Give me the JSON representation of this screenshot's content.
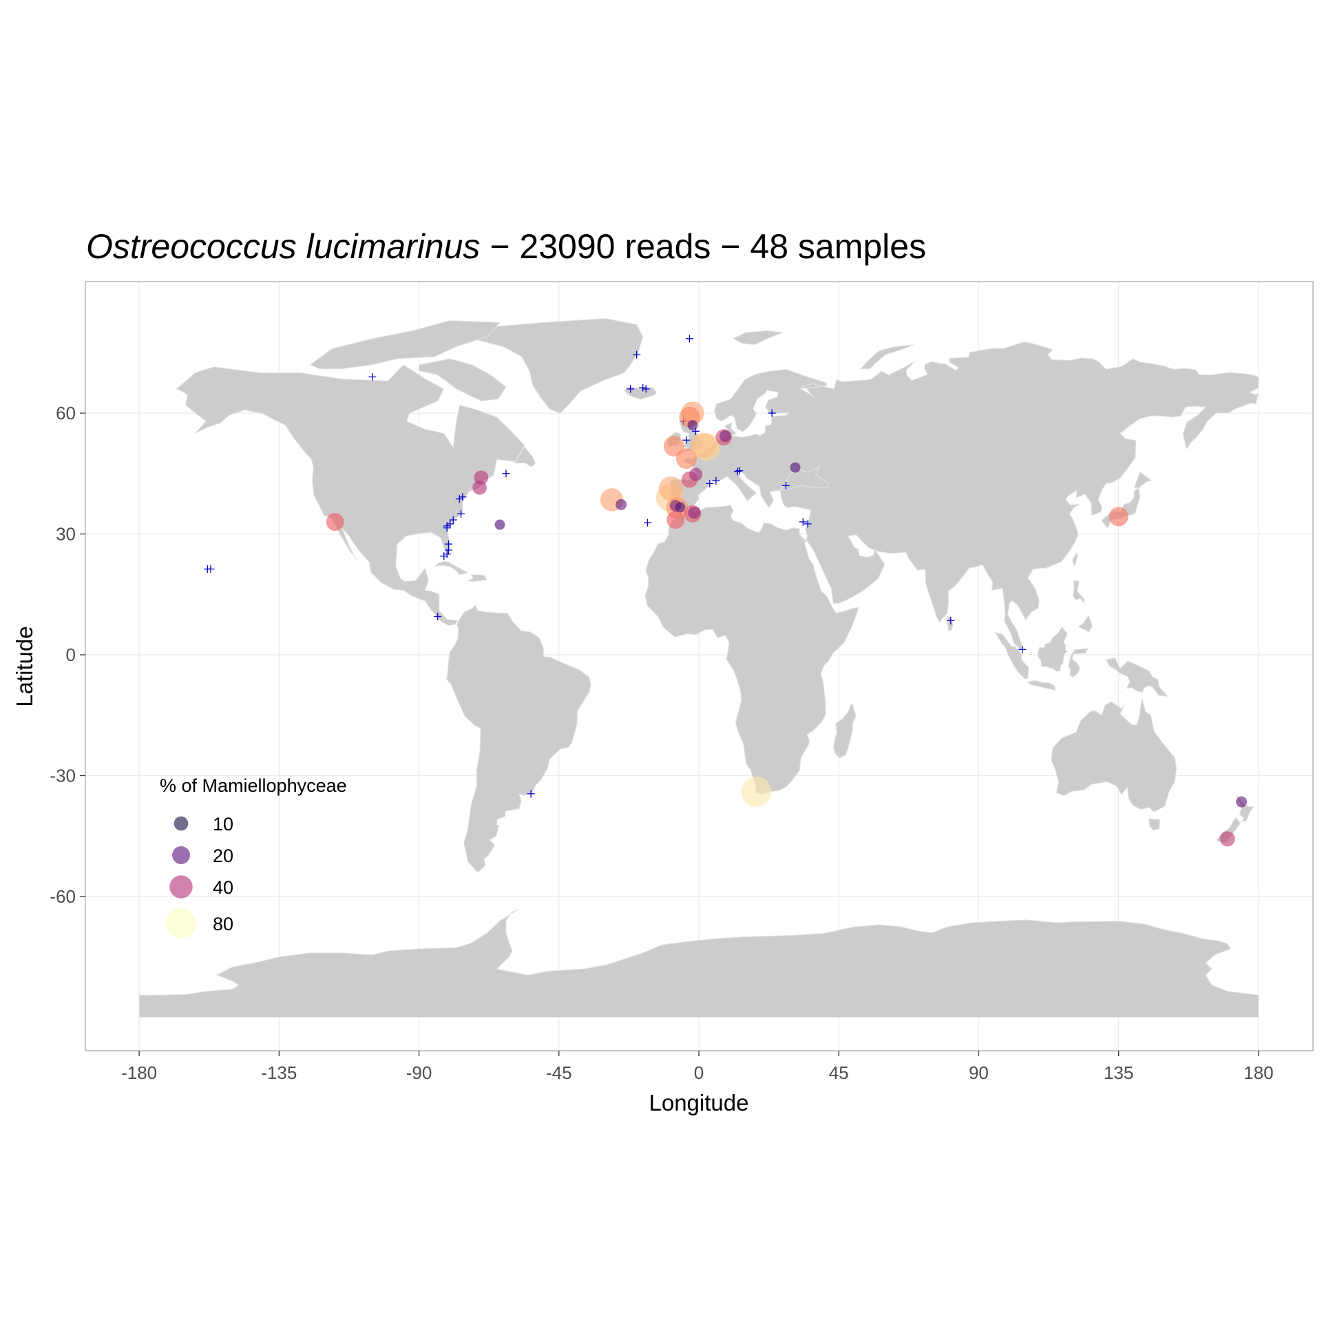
{
  "chart_data": {
    "type": "scatter",
    "title_italic": "Ostreococcus lucimarinus",
    "title_rest": " − 23090 reads − 48 samples",
    "xlabel": "Longitude",
    "ylabel": "Latitude",
    "xlim": [
      -194,
      194
    ],
    "ylim": [
      -98,
      92
    ],
    "x_ticks": [
      -180,
      -135,
      -90,
      -45,
      0,
      45,
      90,
      135,
      180
    ],
    "y_ticks": [
      -60,
      -30,
      0,
      30,
      60
    ],
    "grid": true,
    "legend": {
      "title": "% of Mamiellophyceae",
      "placement": "bottom-left inside",
      "entries": [
        {
          "label": "10",
          "value": 10,
          "color": "#1d1147"
        },
        {
          "label": "20",
          "value": 20,
          "color": "#5f187f"
        },
        {
          "label": "40",
          "value": 40,
          "color": "#b5367a"
        },
        {
          "label": "80",
          "value": 80,
          "color": "#fcfdbf"
        }
      ]
    },
    "colors": {
      "land": "#cccccc",
      "border": "#e6e6e6",
      "absent_marker": "#0000cc",
      "panel_border": "#b3b3b3"
    },
    "present_samples": [
      {
        "lon": -117,
        "lat": 33,
        "pct": 20
      },
      {
        "lon": -70,
        "lat": 44,
        "pct": 10
      },
      {
        "lon": -70.5,
        "lat": 41.5,
        "pct": 10
      },
      {
        "lon": -64,
        "lat": 32.3,
        "pct": 3
      },
      {
        "lon": -28,
        "lat": 38.5,
        "pct": 40
      },
      {
        "lon": -25,
        "lat": 37.3,
        "pct": 4
      },
      {
        "lon": -2,
        "lat": 60,
        "pct": 40
      },
      {
        "lon": -3,
        "lat": 59,
        "pct": 30
      },
      {
        "lon": -2,
        "lat": 57,
        "pct": 3
      },
      {
        "lon": -8,
        "lat": 51.8,
        "pct": 30
      },
      {
        "lon": -4,
        "lat": 48.7,
        "pct": 30
      },
      {
        "lon": 2.5,
        "lat": 51.5,
        "pct": 65
      },
      {
        "lon": 1.5,
        "lat": 52,
        "pct": 50
      },
      {
        "lon": 8,
        "lat": 54,
        "pct": 15
      },
      {
        "lon": 8.5,
        "lat": 54.3,
        "pct": 5
      },
      {
        "lon": -1,
        "lat": 44.8,
        "pct": 8
      },
      {
        "lon": -3,
        "lat": 43.5,
        "pct": 15
      },
      {
        "lon": -9,
        "lat": 41.3,
        "pct": 45
      },
      {
        "lon": -9.5,
        "lat": 39,
        "pct": 60
      },
      {
        "lon": -7.5,
        "lat": 37,
        "pct": 5
      },
      {
        "lon": -7,
        "lat": 36.5,
        "pct": 35
      },
      {
        "lon": -6,
        "lat": 36.6,
        "pct": 3
      },
      {
        "lon": -7.5,
        "lat": 33.5,
        "pct": 20
      },
      {
        "lon": -2,
        "lat": 35,
        "pct": 18
      },
      {
        "lon": -1.5,
        "lat": 35.3,
        "pct": 6
      },
      {
        "lon": 31,
        "lat": 46.5,
        "pct": 3
      },
      {
        "lon": 18.5,
        "lat": -34,
        "pct": 80
      },
      {
        "lon": 135,
        "lat": 34.3,
        "pct": 25
      },
      {
        "lon": 170,
        "lat": -45.7,
        "pct": 12
      },
      {
        "lon": 174.5,
        "lat": -36.5,
        "pct": 4
      }
    ],
    "absent_samples": [
      {
        "lon": -105,
        "lat": 69
      },
      {
        "lon": -158,
        "lat": 21.3
      },
      {
        "lon": -157,
        "lat": 21.3
      },
      {
        "lon": -62,
        "lat": 45
      },
      {
        "lon": -76,
        "lat": 39.2
      },
      {
        "lon": -77,
        "lat": 38.7
      },
      {
        "lon": -76.5,
        "lat": 35
      },
      {
        "lon": -79,
        "lat": 33.5
      },
      {
        "lon": -80,
        "lat": 32.5
      },
      {
        "lon": -81,
        "lat": 32
      },
      {
        "lon": -81,
        "lat": 31.5
      },
      {
        "lon": -80.5,
        "lat": 27.5
      },
      {
        "lon": -80.5,
        "lat": 26
      },
      {
        "lon": -81,
        "lat": 25
      },
      {
        "lon": -82,
        "lat": 24.5
      },
      {
        "lon": -84,
        "lat": 9.5
      },
      {
        "lon": -54,
        "lat": -34.5
      },
      {
        "lon": -20,
        "lat": 74.5
      },
      {
        "lon": -22,
        "lat": 66
      },
      {
        "lon": -18,
        "lat": 66.3
      },
      {
        "lon": -17,
        "lat": 66
      },
      {
        "lon": -3,
        "lat": 78.5
      },
      {
        "lon": -16.5,
        "lat": 32.8
      },
      {
        "lon": -5,
        "lat": 58
      },
      {
        "lon": -1,
        "lat": 55.5
      },
      {
        "lon": -4,
        "lat": 53.3
      },
      {
        "lon": 3.5,
        "lat": 42.5
      },
      {
        "lon": 5.5,
        "lat": 43.2
      },
      {
        "lon": 12.5,
        "lat": 45.5
      },
      {
        "lon": 13,
        "lat": 45.7
      },
      {
        "lon": 23.5,
        "lat": 60
      },
      {
        "lon": 28,
        "lat": 42
      },
      {
        "lon": 33.5,
        "lat": 33
      },
      {
        "lon": 35,
        "lat": 32.5
      },
      {
        "lon": 81,
        "lat": 8.5
      },
      {
        "lon": 104,
        "lat": 1.3
      }
    ]
  }
}
